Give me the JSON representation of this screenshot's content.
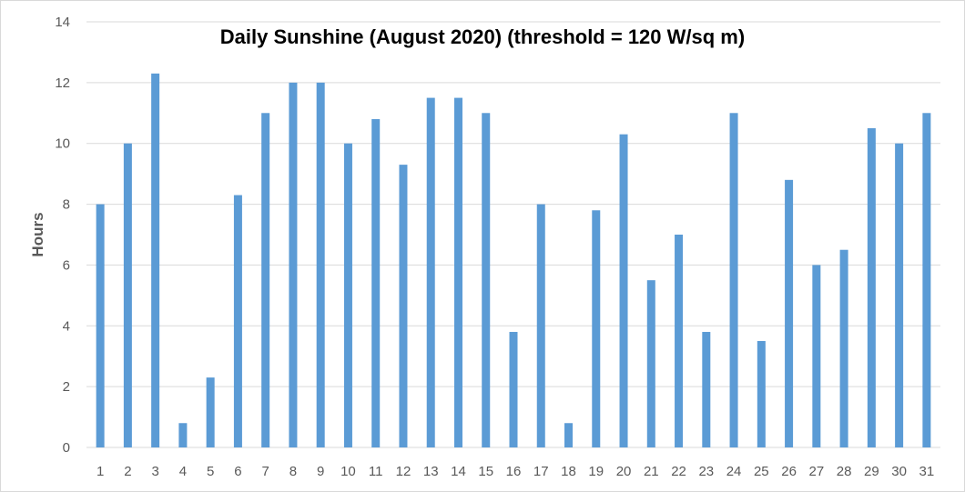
{
  "chart_data": {
    "type": "bar",
    "title": "Daily Sunshine (August 2020) (threshold = 120 W/sq m)",
    "xlabel": "",
    "ylabel": "Hours",
    "ylim": [
      0,
      14
    ],
    "yticks": [
      0,
      2,
      4,
      6,
      8,
      10,
      12,
      14
    ],
    "grid": true,
    "legend": "none",
    "bar_color": "#5b9bd5",
    "categories": [
      "1",
      "2",
      "3",
      "4",
      "5",
      "6",
      "7",
      "8",
      "9",
      "10",
      "11",
      "12",
      "13",
      "14",
      "15",
      "16",
      "17",
      "18",
      "19",
      "20",
      "21",
      "22",
      "23",
      "24",
      "25",
      "26",
      "27",
      "28",
      "29",
      "30",
      "31"
    ],
    "values": [
      8,
      10,
      12.3,
      0.8,
      2.3,
      8.3,
      11,
      12,
      12,
      10,
      10.8,
      9.3,
      11.5,
      11.5,
      11,
      3.8,
      8,
      0.8,
      7.8,
      10.3,
      5.5,
      7,
      3.8,
      11,
      3.5,
      8.8,
      6,
      6.5,
      10.5,
      10,
      11
    ]
  }
}
